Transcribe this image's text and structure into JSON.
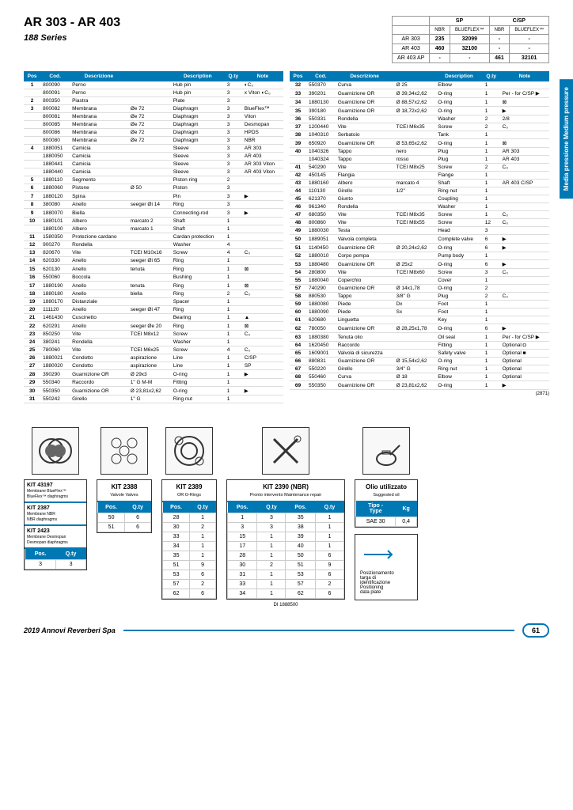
{
  "title": "AR 303 - AR 403",
  "subtitle": "188 Series",
  "sideTab": "Media pressione\nMedium pressure",
  "spHeader": {
    "cols": [
      "",
      "SP",
      "",
      "C/SP",
      ""
    ],
    "sub": [
      "",
      "NBR",
      "BLUEFLEX™",
      "NBR",
      "BLUEFLEX™"
    ],
    "rows": [
      [
        "AR 303",
        "235",
        "32099",
        "-",
        "-"
      ],
      [
        "AR 403",
        "460",
        "32100",
        "-",
        "-"
      ],
      [
        "AR 403 AP",
        "-",
        "-",
        "461",
        "32101"
      ]
    ]
  },
  "headers": [
    "Pos",
    "Cod.",
    "Descrizione",
    "",
    "Description",
    "Q.ty",
    "Note"
  ],
  "leftParts": [
    [
      "1",
      "800090",
      "Perno",
      "",
      "Hub pin",
      "3",
      "◐C₀"
    ],
    [
      "",
      "800091",
      "Perno",
      "",
      "Hub pin",
      "3",
      "x Viton ◐C₀"
    ],
    [
      "2",
      "800350",
      "Piastra",
      "",
      "Plate",
      "3",
      ""
    ],
    [
      "3",
      "800082",
      "Membrana",
      "Øe 72",
      "Diaphragm",
      "3",
      "BlueFlex™"
    ],
    [
      "",
      "800081",
      "Membrana",
      "Øe 72",
      "Diaphragm",
      "3",
      "Viton"
    ],
    [
      "",
      "800085",
      "Membrana",
      "Øe 72",
      "Diaphragm",
      "3",
      "Desmopan"
    ],
    [
      "",
      "800086",
      "Membrana",
      "Øe 72",
      "Diaphragm",
      "3",
      "HPDS"
    ],
    [
      "",
      "800080",
      "Membrana",
      "Øe 72",
      "Diaphragm",
      "3",
      "NBR"
    ],
    [
      "4",
      "1880051",
      "Camicia",
      "",
      "Sleeve",
      "3",
      "AR 303"
    ],
    [
      "",
      "1880050",
      "Camicia",
      "",
      "Sleeve",
      "3",
      "AR 403"
    ],
    [
      "",
      "1880441",
      "Camicia",
      "",
      "Sleeve",
      "3",
      "AR 303 Viton"
    ],
    [
      "",
      "1880440",
      "Camicia",
      "",
      "Sleeve",
      "3",
      "AR 403 Viton"
    ],
    [
      "5",
      "1880110",
      "Segmento",
      "",
      "Piston ring",
      "2",
      ""
    ],
    [
      "6",
      "1880060",
      "Pistone",
      "Ø 50",
      "Piston",
      "3",
      ""
    ],
    [
      "7",
      "1880120",
      "Spina",
      "",
      "Pin",
      "3",
      "▶"
    ],
    [
      "8",
      "380080",
      "Anello",
      "seeger Øi 14",
      "Ring",
      "3",
      ""
    ],
    [
      "9",
      "1880070",
      "Biella",
      "",
      "Connecting-rod",
      "3",
      "▶"
    ],
    [
      "10",
      "1880101",
      "Albero",
      "marcato 2",
      "Shaft",
      "1",
      ""
    ],
    [
      "",
      "1880100",
      "Albero",
      "marcato 1",
      "Shaft",
      "1",
      ""
    ],
    [
      "11",
      "1580350",
      "Protezione cardano",
      "",
      "Cardan protection",
      "1",
      ""
    ],
    [
      "12",
      "900270",
      "Rondella",
      "",
      "Washer",
      "4",
      ""
    ],
    [
      "13",
      "820670",
      "Vite",
      "TCEI M10x16",
      "Screw",
      "4",
      "C₀"
    ],
    [
      "14",
      "620330",
      "Anello",
      "seeger Øi 65",
      "Ring",
      "1",
      ""
    ],
    [
      "15",
      "620130",
      "Anello",
      "tenuta",
      "Ring",
      "1",
      "⊠"
    ],
    [
      "16",
      "550060",
      "Boccola",
      "",
      "Bushing",
      "1",
      ""
    ],
    [
      "17",
      "1880190",
      "Anello",
      "tenuta",
      "Ring",
      "1",
      "⊠"
    ],
    [
      "18",
      "1880180",
      "Anello",
      "biella",
      "Ring",
      "2",
      "C₀"
    ],
    [
      "19",
      "1880170",
      "Distanziale",
      "",
      "Spacer",
      "1",
      ""
    ],
    [
      "20",
      "111120",
      "Anello",
      "seeger Øi 47",
      "Ring",
      "1",
      ""
    ],
    [
      "21",
      "1461430",
      "Cuscinetto",
      "",
      "Bearing",
      "1",
      "▲"
    ],
    [
      "22",
      "620291",
      "Anello",
      "seeger Øe 20",
      "Ring",
      "1",
      "⊠"
    ],
    [
      "23",
      "850250",
      "Vite",
      "TCEI M8x12",
      "Screw",
      "1",
      "C₀"
    ],
    [
      "24",
      "380241",
      "Rondella",
      "",
      "Washer",
      "1",
      ""
    ],
    [
      "25",
      "780060",
      "Vite",
      "TCEI M6x25",
      "Screw",
      "4",
      "C₀"
    ],
    [
      "26",
      "1880021",
      "Condotto",
      "aspirazione",
      "Line",
      "1",
      "C/SP"
    ],
    [
      "27",
      "1880020",
      "Condotto",
      "aspirazione",
      "Line",
      "1",
      "SP"
    ],
    [
      "28",
      "390290",
      "Guarnizione OR",
      "Ø 29x3",
      "O-ring",
      "1",
      "▶"
    ],
    [
      "29",
      "550340",
      "Raccordo",
      "1\" G M-M",
      "Fitting",
      "1",
      ""
    ],
    [
      "30",
      "550350",
      "Guarnizione OR",
      "Ø 23,81x2,62",
      "O-ring",
      "1",
      "▶"
    ],
    [
      "31",
      "550242",
      "Girello",
      "1\" G",
      "Ring nut",
      "1",
      ""
    ]
  ],
  "rightParts": [
    [
      "32",
      "550370",
      "Curva",
      "Ø 25",
      "Elbow",
      "1",
      ""
    ],
    [
      "33",
      "390201",
      "Guarnizione OR",
      "Ø 39,34x2,62",
      "O-ring",
      "1",
      "Per - for C/SP ▶"
    ],
    [
      "34",
      "1880130",
      "Guarnizione OR",
      "Ø 88,57x2,62",
      "O-ring",
      "1",
      "⊠"
    ],
    [
      "35",
      "390180",
      "Guarnizione OR",
      "Ø 18,72x2,62",
      "O-ring",
      "1",
      "▶"
    ],
    [
      "36",
      "550331",
      "Rondella",
      "",
      "Washer",
      "2",
      "2/8"
    ],
    [
      "37",
      "1200440",
      "Vite",
      "TCEI M6x35",
      "Screw",
      "2",
      "C₀"
    ],
    [
      "38",
      "1040310",
      "Serbatoio",
      "",
      "Tank",
      "1",
      ""
    ],
    [
      "39",
      "650920",
      "Guarnizione OR",
      "Ø 53,65x2,62",
      "O-ring",
      "1",
      "⊠"
    ],
    [
      "40",
      "1040326",
      "Tappo",
      "nero",
      "Plug",
      "1",
      "AR 303"
    ],
    [
      "",
      "1040324",
      "Tappo",
      "rosso",
      "Plug",
      "1",
      "AR 403"
    ],
    [
      "41",
      "540290",
      "Vite",
      "TCEI M8x25",
      "Screw",
      "2",
      "C₀"
    ],
    [
      "42",
      "450145",
      "Flangia",
      "",
      "Flange",
      "1",
      ""
    ],
    [
      "43",
      "1880160",
      "Albero",
      "marcato 4",
      "Shaft",
      "1",
      "AR 403 C/SP"
    ],
    [
      "44",
      "110130",
      "Girello",
      "1/2\"",
      "Ring nut",
      "1",
      ""
    ],
    [
      "45",
      "621370",
      "Giunto",
      "",
      "Coupling",
      "1",
      ""
    ],
    [
      "46",
      "961340",
      "Rondella",
      "",
      "Washer",
      "1",
      ""
    ],
    [
      "47",
      "680350",
      "Vite",
      "TCEI M8x35",
      "Screw",
      "1",
      "C₀"
    ],
    [
      "48",
      "800860",
      "Vite",
      "TCEI M8x55",
      "Screw",
      "12",
      "C₀"
    ],
    [
      "49",
      "1880030",
      "Testa",
      "",
      "Head",
      "3",
      ""
    ],
    [
      "50",
      "1889051",
      "Valvola completa",
      "",
      "Complete valve",
      "6",
      "▶"
    ],
    [
      "51",
      "1140450",
      "Guarnizione OR",
      "Ø 20,24x2,62",
      "O-ring",
      "6",
      "▶"
    ],
    [
      "52",
      "1880010",
      "Corpo pompa",
      "",
      "Pump body",
      "1",
      ""
    ],
    [
      "53",
      "1880480",
      "Guarnizione OR",
      "Ø 25x2",
      "O-ring",
      "6",
      "▶"
    ],
    [
      "54",
      "280800",
      "Vite",
      "TCEI M8x60",
      "Screw",
      "3",
      "C₀"
    ],
    [
      "55",
      "1880040",
      "Coperchio",
      "",
      "Cover",
      "1",
      ""
    ],
    [
      "57",
      "740290",
      "Guarnizione OR",
      "Ø 14x1,78",
      "O-ring",
      "2",
      ""
    ],
    [
      "58",
      "880530",
      "Tappo",
      "3/8\" G",
      "Plug",
      "2",
      "C₀"
    ],
    [
      "59",
      "1880080",
      "Piede",
      "Dx",
      "Foot",
      "1",
      ""
    ],
    [
      "60",
      "1880090",
      "Piede",
      "Sx",
      "Foot",
      "1",
      ""
    ],
    [
      "61",
      "620680",
      "Linguetta",
      "",
      "Key",
      "1",
      ""
    ],
    [
      "62",
      "780050",
      "Guarnizione OR",
      "Ø 28,25x1,78",
      "O-ring",
      "6",
      "▶"
    ],
    [
      "63",
      "1880380",
      "Tenuta olio",
      "",
      "Oil seal",
      "1",
      "Per - for C/SP ▶"
    ],
    [
      "64",
      "1620450",
      "Raccordo",
      "",
      "Fitting",
      "1",
      "Optional ◘"
    ],
    [
      "65",
      "1609001",
      "Valvola di sicurezza",
      "",
      "Safety valve",
      "1",
      "Optional ■"
    ],
    [
      "66",
      "880831",
      "Guarnizione OR",
      "Ø 15,54x2,62",
      "O-ring",
      "1",
      "Optional"
    ],
    [
      "67",
      "550220",
      "Girello",
      "3/4\" G",
      "Ring nut",
      "1",
      "Optional"
    ],
    [
      "68",
      "550460",
      "Curva",
      "Ø 18",
      "Elbow",
      "1",
      "Optional"
    ],
    [
      "69",
      "550350",
      "Guarnizione OR",
      "Ø 23,81x2,62",
      "O-ring",
      "1",
      "▶"
    ]
  ],
  "refCode": "(2871)",
  "kits": {
    "multi": [
      {
        "code": "KIT 43197",
        "desc": "Membrane BlueFlex™\nBlueFlex™ diaphragms"
      },
      {
        "code": "KIT 2387",
        "desc": "Membrane NBR\nNBR diaphragms"
      },
      {
        "code": "KIT 2423",
        "desc": "Membrane Desmopan\nDesmopan diaphragms"
      }
    ],
    "multiTable": [
      [
        "3",
        "3"
      ]
    ],
    "kit2388": {
      "title": "KIT 2388",
      "sub": "Valvole\nValves",
      "rows": [
        [
          "50",
          "6"
        ],
        [
          "51",
          "6"
        ]
      ]
    },
    "kit2389": {
      "title": "KIT 2389",
      "sub": "OR\nO-Rings",
      "rows": [
        [
          "28",
          "1"
        ],
        [
          "30",
          "2"
        ],
        [
          "33",
          "1"
        ],
        [
          "34",
          "1"
        ],
        [
          "35",
          "1"
        ],
        [
          "51",
          "9"
        ],
        [
          "53",
          "6"
        ],
        [
          "57",
          "2"
        ],
        [
          "62",
          "6"
        ]
      ]
    },
    "kit2390": {
      "title": "KIT 2390 (NBR)",
      "sub": "Pronto intervento\nMaintenance repair",
      "rows": [
        [
          "1",
          "3",
          "35",
          "1"
        ],
        [
          "3",
          "3",
          "38",
          "1"
        ],
        [
          "15",
          "1",
          "39",
          "1"
        ],
        [
          "17",
          "1",
          "40",
          "1"
        ],
        [
          "28",
          "1",
          "50",
          "6"
        ],
        [
          "30",
          "2",
          "51",
          "9"
        ],
        [
          "31",
          "1",
          "53",
          "6"
        ],
        [
          "33",
          "1",
          "57",
          "2"
        ],
        [
          "34",
          "1",
          "62",
          "6"
        ]
      ]
    }
  },
  "oil": {
    "title": "Olio utilizzato",
    "sub": "Suggested oil",
    "headers": [
      "Tipo - Type",
      "Kg"
    ],
    "row": [
      "SAE 30",
      "0,4"
    ]
  },
  "positioning": "Posizionamento\ntarga di\nidentificazione\nPositioning\ndata plate",
  "diCode": "DI 1888500",
  "footer": "2019 Annovi Reverberi Spa",
  "pageNum": "61"
}
